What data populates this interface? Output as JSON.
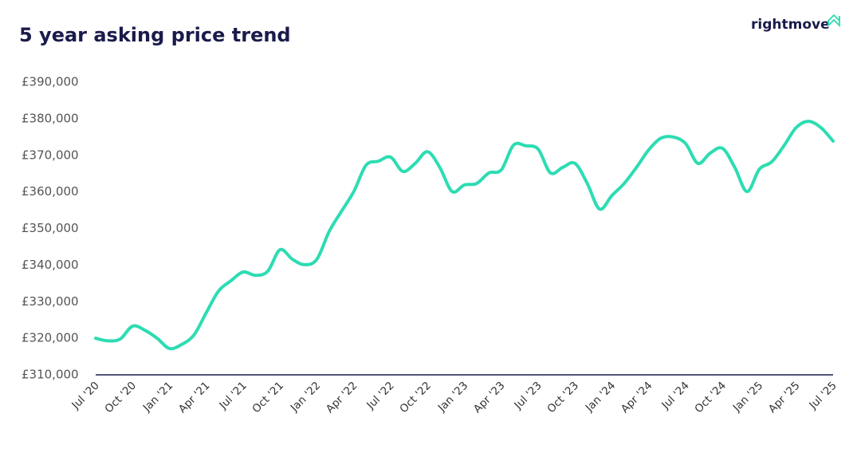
{
  "brand": "rightmove",
  "chart_data": {
    "type": "line",
    "title": "5 year asking price trend",
    "categories": [
      "Jul '20",
      null,
      null,
      "Oct '20",
      null,
      null,
      "Jan '21",
      null,
      null,
      "Apr '21",
      null,
      null,
      "Jul '21",
      null,
      null,
      "Oct '21",
      null,
      null,
      "Jan '22",
      null,
      null,
      "Apr '22",
      null,
      null,
      "Jul '22",
      null,
      null,
      "Oct '22",
      null,
      null,
      "Jan '23",
      null,
      null,
      "Apr '23",
      null,
      null,
      "Jul '23",
      null,
      null,
      "Oct '23",
      null,
      null,
      "Jan '24",
      null,
      null,
      "Apr '24",
      null,
      null,
      "Jul '24",
      null,
      null,
      "Oct '24",
      null,
      null,
      "Jan '25",
      null,
      null,
      "Apr '25",
      null,
      null,
      "Jul '25"
    ],
    "series": [
      {
        "color": "#2ddcb2",
        "values": [
          320000,
          319300,
          319800,
          323300,
          322200,
          320000,
          317200,
          318300,
          320900,
          327000,
          332900,
          335700,
          338100,
          337200,
          338300,
          344200,
          341600,
          340100,
          341600,
          349200,
          354700,
          360100,
          367300,
          368400,
          369500,
          365600,
          367800,
          371000,
          366700,
          360100,
          361900,
          362300,
          365200,
          366000,
          372800,
          372600,
          371700,
          365200,
          366700,
          367800,
          362300,
          355300,
          359000,
          362300,
          366700,
          371500,
          374700,
          375000,
          373200,
          367800,
          370600,
          371900,
          366700,
          360100,
          366200,
          368200,
          372600,
          377600,
          379300,
          377600,
          373900
        ]
      }
    ],
    "ylim": [
      310000,
      390000
    ],
    "yticks": [
      {
        "value": 310000,
        "label": "£310,000"
      },
      {
        "value": 320000,
        "label": "£320,000"
      },
      {
        "value": 330000,
        "label": "£330,000"
      },
      {
        "value": 340000,
        "label": "£340,000"
      },
      {
        "value": 350000,
        "label": "£350,000"
      },
      {
        "value": 360000,
        "label": "£360,000"
      },
      {
        "value": 370000,
        "label": "£370,000"
      },
      {
        "value": 380000,
        "label": "£380,000"
      },
      {
        "value": 390000,
        "label": "£390,000"
      }
    ]
  }
}
